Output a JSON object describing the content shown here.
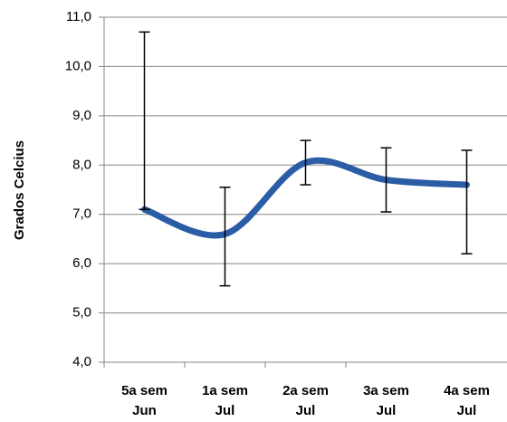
{
  "chart_data": {
    "type": "line",
    "y_label": "Grados Celcius",
    "categories": [
      [
        "5a sem",
        "Jun"
      ],
      [
        "1a sem",
        "Jul"
      ],
      [
        "2a sem",
        "Jul"
      ],
      [
        "3a sem",
        "Jul"
      ],
      [
        "4a sem",
        "Jul"
      ]
    ],
    "series": [
      {
        "color": "#2b5ca6",
        "values": [
          7.1,
          6.6,
          8.05,
          7.7,
          7.6
        ],
        "error_plus": [
          3.6,
          0.95,
          0.45,
          0.65,
          0.7
        ],
        "error_minus": [
          0,
          1.05,
          0.45,
          0.65,
          1.4
        ]
      }
    ],
    "ylim": [
      4,
      11
    ],
    "yticks": [
      {
        "value": 4,
        "label": "4,0"
      },
      {
        "value": 5,
        "label": "5,0"
      },
      {
        "value": 6,
        "label": "6,0"
      },
      {
        "value": 7,
        "label": "7,0"
      },
      {
        "value": 8,
        "label": "8,0"
      },
      {
        "value": 9,
        "label": "9,0"
      },
      {
        "value": 10,
        "label": "10,0"
      },
      {
        "value": 11,
        "label": "11,0"
      }
    ],
    "grid": true,
    "smooth": true
  }
}
